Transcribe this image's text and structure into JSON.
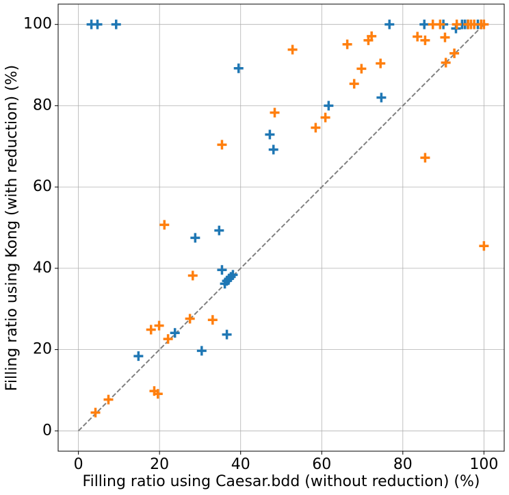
{
  "chart_data": {
    "type": "scatter",
    "x_label": "Filling ratio using Caesar.bdd (without reduction) (%)",
    "y_label": "Filling ratio using Kong (with reduction) (%)",
    "xlim": [
      -5,
      105
    ],
    "ylim": [
      -5,
      105
    ],
    "xticks": [
      0,
      20,
      40,
      60,
      80,
      100
    ],
    "yticks": [
      0,
      20,
      40,
      60,
      80,
      100
    ],
    "grid": true,
    "marker": "+",
    "reference_line": {
      "x": [
        0,
        100
      ],
      "y": [
        0,
        100
      ],
      "color": "#808080",
      "dashed": true
    },
    "series": [
      {
        "color": "#1f77b4",
        "x": [
          3.2,
          4.7,
          9.3,
          39.5,
          76.7,
          85.3,
          90,
          93.1,
          94.6,
          95.3,
          96,
          98.5,
          99.3,
          74.7,
          61.7,
          47.2,
          48.1,
          34.7,
          28.8,
          35.4,
          36.1,
          36.6,
          37.1,
          37.6,
          38.1,
          36.6,
          23.8,
          30.4,
          14.8
        ],
        "y": [
          100,
          100,
          100,
          89.2,
          100,
          100,
          100,
          99,
          100,
          100,
          100,
          100,
          100,
          82,
          80,
          72.9,
          69.2,
          49.3,
          47.5,
          39.6,
          36.2,
          36.9,
          37.4,
          37.9,
          38.4,
          23.7,
          24.1,
          19.7,
          18.4
        ]
      },
      {
        "color": "#ff7f0e",
        "x": [
          4.2,
          7.4,
          18.7,
          19.6,
          17.9,
          19.9,
          22.1,
          27.5,
          33.1,
          28.2,
          21.2,
          35.4,
          48.4,
          52.8,
          58.5,
          60.9,
          66.3,
          68,
          69.8,
          71.5,
          72.3,
          74.5,
          83.6,
          85.5,
          85.5,
          87.4,
          89.2,
          90.4,
          90.6,
          92.7,
          93.3,
          96.1,
          96.8,
          97.6,
          99.3,
          100,
          100
        ],
        "y": [
          4.5,
          7.7,
          9.8,
          9.1,
          24.9,
          25.9,
          22.6,
          27.6,
          27.3,
          38.2,
          50.7,
          70.4,
          78.3,
          93.8,
          74.6,
          77.1,
          95.1,
          85.4,
          89.1,
          96.1,
          97.1,
          90.4,
          97,
          96.1,
          67.2,
          100,
          100,
          96.8,
          90.6,
          92.9,
          100,
          100,
          100,
          100,
          100,
          100,
          45.5
        ]
      }
    ]
  }
}
